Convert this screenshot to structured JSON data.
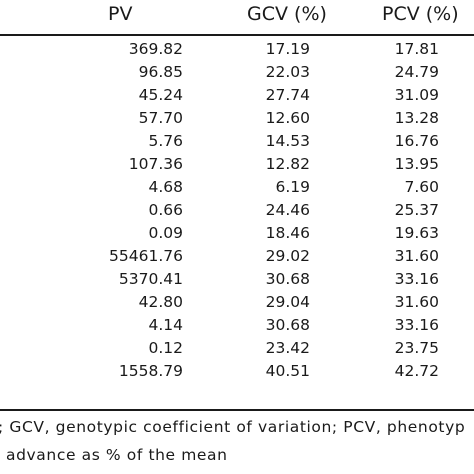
{
  "table": {
    "columns": [
      "PV",
      "GCV (%)",
      "PCV (%)"
    ],
    "rows": [
      [
        "369.82",
        "17.19",
        "17.81"
      ],
      [
        "96.85",
        "22.03",
        "24.79"
      ],
      [
        "45.24",
        "27.74",
        "31.09"
      ],
      [
        "57.70",
        "12.60",
        "13.28"
      ],
      [
        "5.76",
        "14.53",
        "16.76"
      ],
      [
        "107.36",
        "12.82",
        "13.95"
      ],
      [
        "4.68",
        "6.19",
        "7.60"
      ],
      [
        "0.66",
        "24.46",
        "25.37"
      ],
      [
        "0.09",
        "18.46",
        "19.63"
      ],
      [
        "55461.76",
        "29.02",
        "31.60"
      ],
      [
        "5370.41",
        "30.68",
        "33.16"
      ],
      [
        "42.80",
        "29.04",
        "31.60"
      ],
      [
        "4.14",
        "30.68",
        "33.16"
      ],
      [
        "0.12",
        "23.42",
        "23.75"
      ],
      [
        "1558.79",
        "40.51",
        "42.72"
      ]
    ]
  },
  "footnote": {
    "line1": "; GCV, genotypic coefficient of variation; PCV, phenotyp",
    "line2": "advance as % of the mean"
  }
}
